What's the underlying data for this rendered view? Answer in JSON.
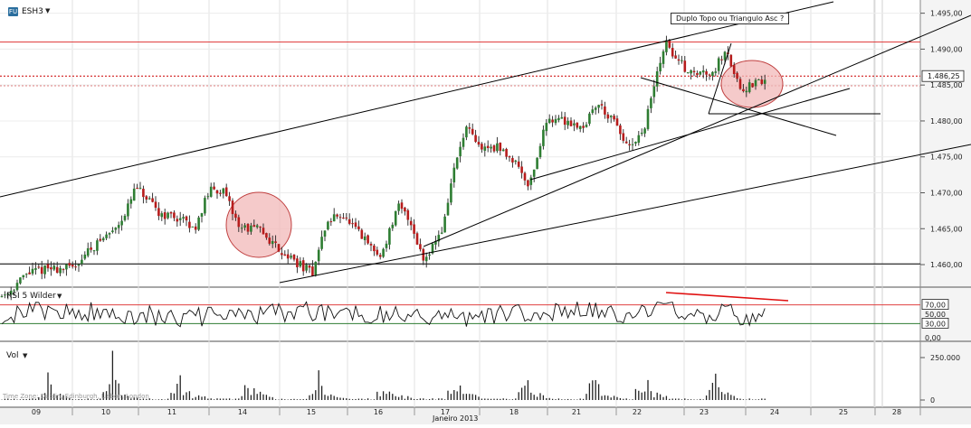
{
  "header": {
    "symbol_badge": "FU",
    "symbol": "ESH3",
    "rsi_label": "RSI 5 Wilder",
    "vol_label": "Vol",
    "timezone": "Time Zone: Dublin, Edinburgh, Lisbon, London",
    "x_axis_title": "Janeiro 2013"
  },
  "annotation": {
    "text": "Duplo Topo ou Triangulo Asc ?"
  },
  "chart_data": [
    {
      "type": "candlestick",
      "title": "",
      "symbol": "ESH3",
      "last_price": "1.486,25",
      "y_tick_labels": [
        "1.460,00",
        "1.465,00",
        "1.470,00",
        "1.475,00",
        "1.480,00",
        "1.485,00",
        "1.490,00",
        "1.495,00"
      ],
      "y_ticks": [
        1460,
        1465,
        1470,
        1475,
        1480,
        1485,
        1490,
        1495
      ],
      "ylim": [
        1456.8,
        1496.8
      ],
      "x_tick_labels": [
        "09",
        "10",
        "11",
        "14",
        "15",
        "16",
        "17",
        "18",
        "21",
        "22",
        "23",
        "24",
        "25",
        "28"
      ],
      "horizontal_lines": [
        {
          "value": 1491.0,
          "color": "#e04040"
        },
        {
          "value": 1460.1,
          "color": "#000000"
        },
        {
          "value": 1486.25,
          "color": "#cc0000",
          "dotted": true
        },
        {
          "value": 1484.9,
          "color": "#e08080",
          "dotted": true
        }
      ],
      "colors": {
        "up": "#2e7d32",
        "down": "#b71c1c",
        "wick": "#222222",
        "circles": "#f2b8b8"
      }
    },
    {
      "type": "line",
      "title": "RSI 5 Wilder",
      "y_tick_labels": [
        "0,00",
        "30,00",
        "50,00",
        "70,00"
      ],
      "y_ticks": [
        0,
        30,
        50,
        70
      ],
      "ylim": [
        0,
        100
      ],
      "levels": [
        {
          "value": 70,
          "label": "70,00",
          "color": "#e04040"
        },
        {
          "value": 30,
          "label": "30,00",
          "color": "#2e7d32"
        }
      ]
    },
    {
      "type": "bar",
      "title": "Vol",
      "y_tick_labels": [
        "0",
        "250.000"
      ],
      "y_ticks": [
        0,
        250000
      ],
      "ylim": [
        0,
        300000
      ]
    }
  ]
}
